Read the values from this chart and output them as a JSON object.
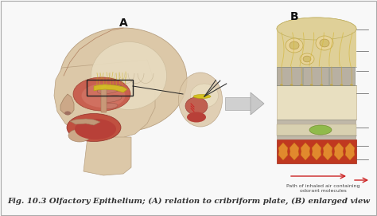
{
  "background_color": "#f8f8f8",
  "caption": "Fig. 10.3 Olfactory Epithelium; (A) relation to cribriform plate, (B) enlarged view",
  "caption_fontsize": 7.2,
  "caption_color": "#333333",
  "label_A": "A",
  "label_B": "B",
  "label_fontsize": 10,
  "label_color": "#111111",
  "fig_width": 4.74,
  "fig_height": 2.71,
  "dpi": 100,
  "border_color": "#aaaaaa",
  "small_label_size": 4.5,
  "small_label_color": "#444444"
}
